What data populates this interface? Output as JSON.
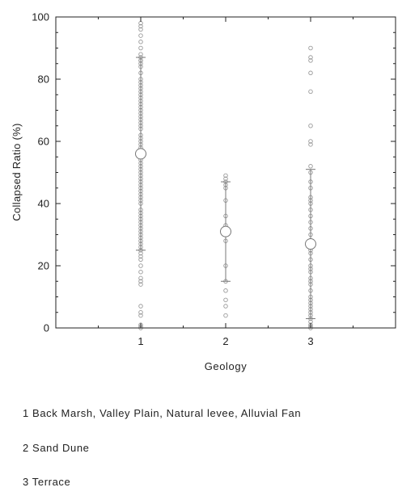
{
  "chart_data": {
    "type": "scatter",
    "title": "",
    "xlabel": "Geology",
    "ylabel": "Collapsed Ratio (%)",
    "xlim": [
      0,
      4
    ],
    "ylim": [
      0,
      100
    ],
    "x_ticks": [
      1,
      2,
      3
    ],
    "y_ticks": [
      0,
      20,
      40,
      60,
      80,
      100
    ],
    "grid": false,
    "legend_position": "bottom-left",
    "legend": [
      "1 Back Marsh, Valley Plain, Natural levee, Alluvial Fan",
      "2 Sand Dune",
      "3 Terrace"
    ],
    "colors": {
      "points": "#9a9a9a",
      "summary": "#777777",
      "axes": "#222222"
    },
    "series": [
      {
        "x": 1,
        "points": [
          98,
          97,
          96,
          94,
          92,
          90,
          88,
          87,
          86,
          86,
          85,
          84,
          82,
          80,
          79,
          78,
          77,
          76,
          75,
          74,
          73,
          72,
          71,
          70,
          69,
          68,
          67,
          66,
          65,
          64,
          62,
          61,
          60,
          59,
          58,
          57,
          55,
          54,
          53,
          52,
          51,
          50,
          49,
          48,
          47,
          46,
          45,
          44,
          43,
          42,
          41,
          40,
          38,
          37,
          36,
          35,
          34,
          33,
          32,
          31,
          30,
          29,
          28,
          27,
          26,
          25,
          24,
          23,
          22,
          20,
          18,
          16,
          15,
          14,
          7,
          5,
          4,
          1,
          0.5,
          0
        ],
        "mean": 56,
        "sd_upper": 87,
        "sd_lower": 25
      },
      {
        "x": 2,
        "points": [
          49,
          48,
          47,
          46,
          45,
          41,
          36,
          33,
          30,
          28,
          20,
          15,
          12,
          9,
          7,
          4
        ],
        "mean": 31,
        "sd_upper": 47,
        "sd_lower": 15
      },
      {
        "x": 3,
        "points": [
          90,
          87,
          86,
          82,
          76,
          65,
          60,
          59,
          52,
          50,
          47,
          45,
          42,
          41,
          40,
          38,
          36,
          34,
          32,
          30,
          28,
          26,
          25,
          24,
          22,
          20,
          19,
          18,
          16,
          15,
          14,
          12,
          10,
          9,
          8,
          7,
          6,
          5,
          4,
          3,
          2,
          1,
          0.5,
          0
        ],
        "mean": 27,
        "sd_upper": 51,
        "sd_lower": 3
      }
    ]
  }
}
